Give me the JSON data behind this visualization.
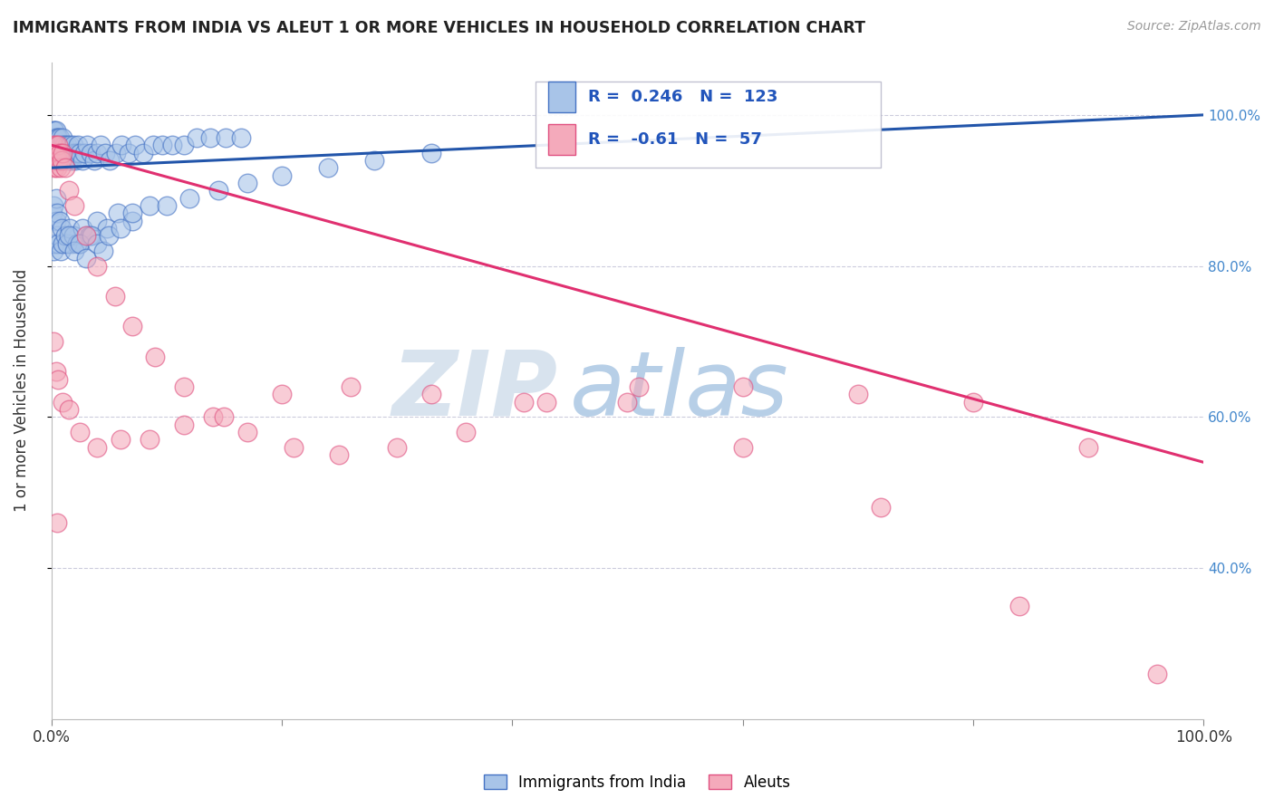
{
  "title": "IMMIGRANTS FROM INDIA VS ALEUT 1 OR MORE VEHICLES IN HOUSEHOLD CORRELATION CHART",
  "source": "Source: ZipAtlas.com",
  "ylabel": "1 or more Vehicles in Household",
  "xlim": [
    0.0,
    1.0
  ],
  "ylim": [
    0.2,
    1.07
  ],
  "y_ticks": [
    0.4,
    0.6,
    0.8,
    1.0
  ],
  "y_tick_labels_right": [
    "40.0%",
    "60.0%",
    "80.0%",
    "100.0%"
  ],
  "R_blue": 0.246,
  "N_blue": 123,
  "R_pink": -0.61,
  "N_pink": 57,
  "blue_fill": "#A8C4E8",
  "blue_edge": "#4472C4",
  "pink_fill": "#F4AABB",
  "pink_edge": "#E05080",
  "blue_line_color": "#2255AA",
  "pink_line_color": "#E03070",
  "watermark_zip": "ZIP",
  "watermark_atlas": "atlas",
  "watermark_color_zip": "#C8D8E8",
  "watermark_color_atlas": "#99BBDD",
  "legend_label_blue": "Immigrants from India",
  "legend_label_pink": "Aleuts",
  "blue_x": [
    0.001,
    0.001,
    0.001,
    0.002,
    0.002,
    0.002,
    0.002,
    0.002,
    0.003,
    0.003,
    0.003,
    0.003,
    0.003,
    0.003,
    0.004,
    0.004,
    0.004,
    0.004,
    0.004,
    0.005,
    0.005,
    0.005,
    0.005,
    0.006,
    0.006,
    0.006,
    0.006,
    0.007,
    0.007,
    0.007,
    0.008,
    0.008,
    0.008,
    0.009,
    0.009,
    0.01,
    0.01,
    0.01,
    0.011,
    0.011,
    0.012,
    0.012,
    0.013,
    0.014,
    0.015,
    0.015,
    0.016,
    0.017,
    0.018,
    0.019,
    0.02,
    0.021,
    0.022,
    0.023,
    0.025,
    0.027,
    0.029,
    0.031,
    0.034,
    0.037,
    0.04,
    0.043,
    0.047,
    0.051,
    0.056,
    0.061,
    0.067,
    0.073,
    0.08,
    0.088,
    0.096,
    0.105,
    0.115,
    0.126,
    0.138,
    0.151,
    0.165,
    0.018,
    0.024,
    0.03,
    0.001,
    0.002,
    0.002,
    0.003,
    0.004,
    0.004,
    0.005,
    0.005,
    0.006,
    0.007,
    0.008,
    0.009,
    0.01,
    0.012,
    0.014,
    0.016,
    0.019,
    0.022,
    0.027,
    0.033,
    0.04,
    0.048,
    0.058,
    0.07,
    0.085,
    0.1,
    0.12,
    0.145,
    0.17,
    0.2,
    0.24,
    0.28,
    0.33,
    0.015,
    0.02,
    0.025,
    0.03,
    0.035,
    0.04,
    0.045,
    0.05,
    0.06,
    0.07
  ],
  "blue_y": [
    0.96,
    0.97,
    0.95,
    0.96,
    0.97,
    0.95,
    0.98,
    0.94,
    0.96,
    0.97,
    0.95,
    0.98,
    0.94,
    0.96,
    0.95,
    0.97,
    0.96,
    0.94,
    0.98,
    0.96,
    0.95,
    0.97,
    0.94,
    0.96,
    0.95,
    0.97,
    0.94,
    0.96,
    0.95,
    0.97,
    0.95,
    0.96,
    0.94,
    0.96,
    0.95,
    0.96,
    0.94,
    0.97,
    0.95,
    0.96,
    0.95,
    0.94,
    0.95,
    0.96,
    0.95,
    0.94,
    0.96,
    0.95,
    0.94,
    0.96,
    0.95,
    0.94,
    0.95,
    0.96,
    0.95,
    0.94,
    0.95,
    0.96,
    0.95,
    0.94,
    0.95,
    0.96,
    0.95,
    0.94,
    0.95,
    0.96,
    0.95,
    0.96,
    0.95,
    0.96,
    0.96,
    0.96,
    0.96,
    0.97,
    0.97,
    0.97,
    0.97,
    0.83,
    0.83,
    0.84,
    0.87,
    0.82,
    0.88,
    0.83,
    0.86,
    0.89,
    0.84,
    0.87,
    0.83,
    0.86,
    0.82,
    0.85,
    0.83,
    0.84,
    0.83,
    0.85,
    0.84,
    0.83,
    0.85,
    0.84,
    0.86,
    0.85,
    0.87,
    0.86,
    0.88,
    0.88,
    0.89,
    0.9,
    0.91,
    0.92,
    0.93,
    0.94,
    0.95,
    0.84,
    0.82,
    0.83,
    0.81,
    0.84,
    0.83,
    0.82,
    0.84,
    0.85,
    0.87
  ],
  "pink_x": [
    0.001,
    0.002,
    0.002,
    0.003,
    0.003,
    0.004,
    0.004,
    0.005,
    0.005,
    0.006,
    0.006,
    0.007,
    0.008,
    0.009,
    0.01,
    0.012,
    0.015,
    0.02,
    0.03,
    0.04,
    0.055,
    0.07,
    0.09,
    0.115,
    0.14,
    0.17,
    0.21,
    0.25,
    0.3,
    0.36,
    0.43,
    0.51,
    0.6,
    0.7,
    0.8,
    0.9,
    0.002,
    0.004,
    0.006,
    0.01,
    0.015,
    0.025,
    0.04,
    0.06,
    0.085,
    0.115,
    0.15,
    0.2,
    0.26,
    0.33,
    0.41,
    0.5,
    0.6,
    0.72,
    0.84,
    0.96,
    0.005
  ],
  "pink_y": [
    0.95,
    0.96,
    0.94,
    0.95,
    0.93,
    0.94,
    0.96,
    0.95,
    0.93,
    0.94,
    0.96,
    0.95,
    0.93,
    0.94,
    0.95,
    0.93,
    0.9,
    0.88,
    0.84,
    0.8,
    0.76,
    0.72,
    0.68,
    0.64,
    0.6,
    0.58,
    0.56,
    0.55,
    0.56,
    0.58,
    0.62,
    0.64,
    0.64,
    0.63,
    0.62,
    0.56,
    0.7,
    0.66,
    0.65,
    0.62,
    0.61,
    0.58,
    0.56,
    0.57,
    0.57,
    0.59,
    0.6,
    0.63,
    0.64,
    0.63,
    0.62,
    0.62,
    0.56,
    0.48,
    0.35,
    0.26,
    0.46
  ]
}
